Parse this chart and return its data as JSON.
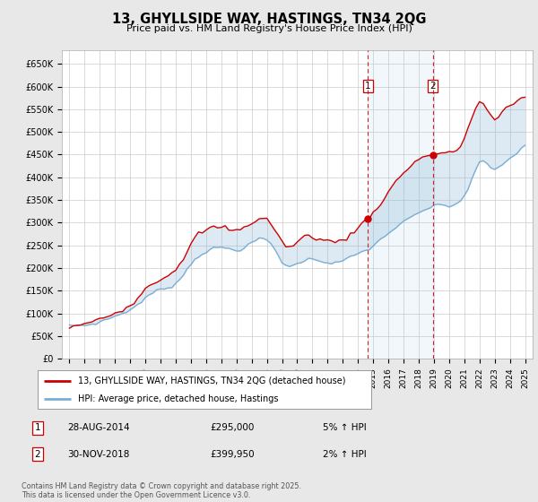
{
  "title": "13, GHYLLSIDE WAY, HASTINGS, TN34 2QG",
  "subtitle": "Price paid vs. HM Land Registry's House Price Index (HPI)",
  "background_color": "#e8e8e8",
  "plot_bg_color": "#ffffff",
  "ylim": [
    0,
    680000
  ],
  "yticks": [
    0,
    50000,
    100000,
    150000,
    200000,
    250000,
    300000,
    350000,
    400000,
    450000,
    500000,
    550000,
    600000,
    650000
  ],
  "ytick_labels": [
    "£0",
    "£50K",
    "£100K",
    "£150K",
    "£200K",
    "£250K",
    "£300K",
    "£350K",
    "£400K",
    "£450K",
    "£500K",
    "£550K",
    "£600K",
    "£650K"
  ],
  "xlim_start": 1994.5,
  "xlim_end": 2025.5,
  "purchase1_date": 2014.65,
  "purchase1_price": 295000,
  "purchase2_date": 2018.92,
  "purchase2_price": 399950,
  "legend_line1": "13, GHYLLSIDE WAY, HASTINGS, TN34 2QG (detached house)",
  "legend_line2": "HPI: Average price, detached house, Hastings",
  "footer": "Contains HM Land Registry data © Crown copyright and database right 2025.\nThis data is licensed under the Open Government Licence v3.0.",
  "hpi_color": "#7aaed4",
  "paid_color": "#cc0000",
  "vline_color": "#cc0000",
  "shade_color": "#ddeeff",
  "grid_color": "#cccccc",
  "hpi_years": [
    1995.0,
    1995.25,
    1995.5,
    1995.75,
    1996.0,
    1996.25,
    1996.5,
    1996.75,
    1997.0,
    1997.25,
    1997.5,
    1997.75,
    1998.0,
    1998.25,
    1998.5,
    1998.75,
    1999.0,
    1999.25,
    1999.5,
    1999.75,
    2000.0,
    2000.25,
    2000.5,
    2000.75,
    2001.0,
    2001.25,
    2001.5,
    2001.75,
    2002.0,
    2002.25,
    2002.5,
    2002.75,
    2003.0,
    2003.25,
    2003.5,
    2003.75,
    2004.0,
    2004.25,
    2004.5,
    2004.75,
    2005.0,
    2005.25,
    2005.5,
    2005.75,
    2006.0,
    2006.25,
    2006.5,
    2006.75,
    2007.0,
    2007.25,
    2007.5,
    2007.75,
    2008.0,
    2008.25,
    2008.5,
    2008.75,
    2009.0,
    2009.25,
    2009.5,
    2009.75,
    2010.0,
    2010.25,
    2010.5,
    2010.75,
    2011.0,
    2011.25,
    2011.5,
    2011.75,
    2012.0,
    2012.25,
    2012.5,
    2012.75,
    2013.0,
    2013.25,
    2013.5,
    2013.75,
    2014.0,
    2014.25,
    2014.5,
    2014.75,
    2015.0,
    2015.25,
    2015.5,
    2015.75,
    2016.0,
    2016.25,
    2016.5,
    2016.75,
    2017.0,
    2017.25,
    2017.5,
    2017.75,
    2018.0,
    2018.25,
    2018.5,
    2018.75,
    2019.0,
    2019.25,
    2019.5,
    2019.75,
    2020.0,
    2020.25,
    2020.5,
    2020.75,
    2021.0,
    2021.25,
    2021.5,
    2021.75,
    2022.0,
    2022.25,
    2022.5,
    2022.75,
    2023.0,
    2023.25,
    2023.5,
    2023.75,
    2024.0,
    2024.25,
    2024.5,
    2024.75,
    2025.0
  ],
  "hpi_vals": [
    70000,
    71000,
    72000,
    73000,
    74000,
    75000,
    77000,
    79000,
    82000,
    85000,
    88000,
    91000,
    94000,
    97000,
    101000,
    105000,
    109000,
    114000,
    120000,
    127000,
    134000,
    140000,
    145000,
    149000,
    152000,
    155000,
    158000,
    162000,
    168000,
    176000,
    186000,
    198000,
    210000,
    220000,
    228000,
    234000,
    238000,
    241000,
    243000,
    244000,
    244000,
    243000,
    242000,
    241000,
    241000,
    243000,
    246000,
    250000,
    255000,
    260000,
    263000,
    263000,
    260000,
    253000,
    242000,
    228000,
    214000,
    207000,
    204000,
    205000,
    210000,
    215000,
    218000,
    220000,
    220000,
    219000,
    218000,
    216000,
    214000,
    213000,
    213000,
    214000,
    216000,
    219000,
    222000,
    226000,
    230000,
    234000,
    238000,
    243000,
    249000,
    256000,
    263000,
    270000,
    277000,
    284000,
    290000,
    295000,
    300000,
    305000,
    310000,
    315000,
    320000,
    325000,
    330000,
    333000,
    335000,
    337000,
    338000,
    338000,
    336000,
    338000,
    342000,
    350000,
    360000,
    375000,
    395000,
    415000,
    430000,
    435000,
    430000,
    420000,
    415000,
    420000,
    428000,
    435000,
    442000,
    448000,
    455000,
    462000,
    470000
  ],
  "paid_years": [
    1995.0,
    1995.25,
    1995.5,
    1995.75,
    1996.0,
    1996.25,
    1996.5,
    1996.75,
    1997.0,
    1997.25,
    1997.5,
    1997.75,
    1998.0,
    1998.25,
    1998.5,
    1998.75,
    1999.0,
    1999.25,
    1999.5,
    1999.75,
    2000.0,
    2000.25,
    2000.5,
    2000.75,
    2001.0,
    2001.25,
    2001.5,
    2001.75,
    2002.0,
    2002.25,
    2002.5,
    2002.75,
    2003.0,
    2003.25,
    2003.5,
    2003.75,
    2004.0,
    2004.25,
    2004.5,
    2004.75,
    2005.0,
    2005.25,
    2005.5,
    2005.75,
    2006.0,
    2006.25,
    2006.5,
    2006.75,
    2007.0,
    2007.25,
    2007.5,
    2007.75,
    2008.0,
    2008.25,
    2008.5,
    2008.75,
    2009.0,
    2009.25,
    2009.5,
    2009.75,
    2010.0,
    2010.25,
    2010.5,
    2010.75,
    2011.0,
    2011.25,
    2011.5,
    2011.75,
    2012.0,
    2012.25,
    2012.5,
    2012.75,
    2013.0,
    2013.25,
    2013.5,
    2013.75,
    2014.0,
    2014.25,
    2014.5,
    2014.75,
    2015.0,
    2015.25,
    2015.5,
    2015.75,
    2016.0,
    2016.25,
    2016.5,
    2016.75,
    2017.0,
    2017.25,
    2017.5,
    2017.75,
    2018.0,
    2018.25,
    2018.5,
    2018.75,
    2019.0,
    2019.25,
    2019.5,
    2019.75,
    2020.0,
    2020.25,
    2020.5,
    2020.75,
    2021.0,
    2021.25,
    2021.5,
    2021.75,
    2022.0,
    2022.25,
    2022.5,
    2022.75,
    2023.0,
    2023.25,
    2023.5,
    2023.75,
    2024.0,
    2024.25,
    2024.5,
    2024.75,
    2025.0
  ],
  "paid_vals": [
    72000,
    73500,
    74000,
    75000,
    76000,
    77000,
    79000,
    82000,
    86000,
    90000,
    94000,
    98000,
    102000,
    107000,
    112000,
    118000,
    124000,
    131000,
    139000,
    148000,
    157000,
    164000,
    170000,
    175000,
    179000,
    183000,
    188000,
    194000,
    202000,
    213000,
    226000,
    241000,
    255000,
    265000,
    273000,
    278000,
    282000,
    285000,
    287000,
    288000,
    288000,
    287000,
    284000,
    282000,
    281000,
    284000,
    289000,
    295000,
    301000,
    307000,
    311000,
    311000,
    308000,
    299000,
    286000,
    271000,
    257000,
    249000,
    247000,
    250000,
    257000,
    264000,
    268000,
    270000,
    270000,
    268000,
    266000,
    263000,
    260000,
    258000,
    257000,
    259000,
    263000,
    268000,
    275000,
    282000,
    289000,
    297000,
    305000,
    313000,
    323000,
    334000,
    346000,
    358000,
    369000,
    380000,
    390000,
    400000,
    410000,
    420000,
    428000,
    435000,
    440000,
    444000,
    448000,
    451000,
    452000,
    453000,
    453000,
    453000,
    451000,
    453000,
    458000,
    470000,
    487000,
    508000,
    532000,
    553000,
    565000,
    562000,
    550000,
    535000,
    525000,
    530000,
    540000,
    548000,
    555000,
    561000,
    568000,
    575000,
    582000
  ]
}
